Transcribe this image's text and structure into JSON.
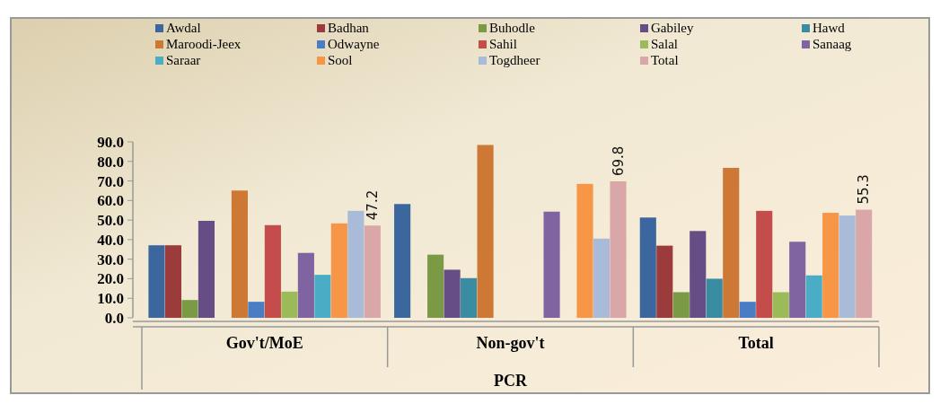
{
  "chart_data": {
    "type": "bar",
    "xlabel": "PCR",
    "categories": [
      "Gov't/MoE",
      "Non-gov't",
      "Total"
    ],
    "ylim": [
      0,
      90
    ],
    "yticks": [
      {
        "value": 0,
        "label": "0.0"
      },
      {
        "value": 10,
        "label": "10.0"
      },
      {
        "value": 20,
        "label": "20.0"
      },
      {
        "value": 30,
        "label": "30.0"
      },
      {
        "value": 40,
        "label": "40.0"
      },
      {
        "value": 50,
        "label": "50.0"
      },
      {
        "value": 60,
        "label": "60.0"
      },
      {
        "value": 70,
        "label": "70.0"
      },
      {
        "value": 80,
        "label": "80.0"
      },
      {
        "value": 90,
        "label": "90.0"
      }
    ],
    "legend": "top",
    "grid": false,
    "series": [
      {
        "name": "Awdal",
        "color": "#3c679e",
        "values": [
          37.1,
          58.2,
          51.3
        ]
      },
      {
        "name": "Badhan",
        "color": "#9c3b3b",
        "values": [
          37.1,
          null,
          36.9
        ]
      },
      {
        "name": "Buhodle",
        "color": "#7a9a45",
        "values": [
          9.1,
          32.3,
          13.1
        ]
      },
      {
        "name": "Gabiley",
        "color": "#664d86",
        "values": [
          49.6,
          24.6,
          44.4
        ]
      },
      {
        "name": "Hawd",
        "color": "#3a8ca3",
        "values": [
          null,
          20.3,
          20.0
        ]
      },
      {
        "name": "Maroodi-Jeex",
        "color": "#cd7834",
        "values": [
          65.1,
          88.4,
          76.7
        ]
      },
      {
        "name": "Odwayne",
        "color": "#4a7dc4",
        "values": [
          8.2,
          null,
          8.2
        ]
      },
      {
        "name": "Sahil",
        "color": "#c44c4a",
        "values": [
          47.4,
          null,
          54.7
        ]
      },
      {
        "name": "Salal",
        "color": "#9bbb59",
        "values": [
          13.4,
          null,
          13.1
        ]
      },
      {
        "name": "Sanaag",
        "color": "#8064a2",
        "values": [
          33.2,
          54.3,
          38.9
        ]
      },
      {
        "name": "Saraar",
        "color": "#4bacc6",
        "values": [
          22.0,
          null,
          21.7
        ]
      },
      {
        "name": "Sool",
        "color": "#f79646",
        "values": [
          48.3,
          68.5,
          53.7
        ]
      },
      {
        "name": "Togdheer",
        "color": "#a9bbd9",
        "values": [
          54.7,
          40.5,
          52.3
        ]
      },
      {
        "name": "Total",
        "color": "#d9a7a8",
        "values": [
          47.2,
          69.8,
          55.3
        ],
        "value_labels": [
          "47.2",
          "69.8",
          "55.3"
        ]
      }
    ]
  }
}
